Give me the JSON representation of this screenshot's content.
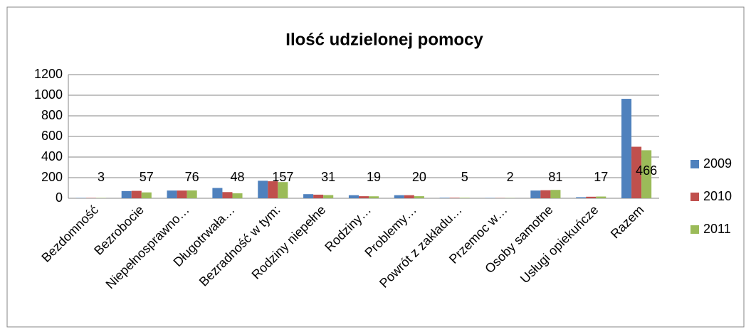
{
  "chart_data": {
    "type": "bar",
    "title": "Ilość udzielonej pomocy",
    "categories": [
      "Bezdomność",
      "Bezrobocie",
      "Niepełnosprawno…",
      "Długotrwała…",
      "Bezradność w tym:",
      "Rodziny niepełne",
      "Rodziny…",
      "Problemy…",
      "Powrót z zakładu…",
      "Przemoc w…",
      "Osoby samotne",
      "Usługi opiekuńcze",
      "Razem"
    ],
    "series": [
      {
        "name": "2009",
        "color": "#4f81bd",
        "values": [
          3,
          70,
          75,
          100,
          170,
          40,
          30,
          30,
          5,
          3,
          75,
          10,
          965
        ]
      },
      {
        "name": "2010",
        "color": "#c0504d",
        "values": [
          3,
          72,
          75,
          60,
          165,
          35,
          20,
          30,
          5,
          2,
          78,
          15,
          500
        ]
      },
      {
        "name": "2011",
        "color": "#9bbb59",
        "values": [
          3,
          57,
          76,
          48,
          157,
          31,
          19,
          20,
          5,
          2,
          81,
          17,
          466
        ]
      }
    ],
    "ylim": [
      0,
      1200
    ],
    "yticks": [
      0,
      200,
      400,
      600,
      800,
      1000,
      1200
    ],
    "grid": true,
    "legend": "right"
  }
}
